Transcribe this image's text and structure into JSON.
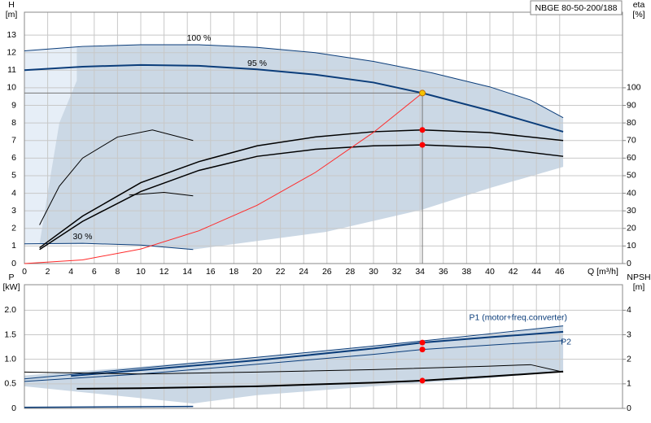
{
  "chart_data": [
    {
      "type": "line",
      "title": "NBGE 80-50-200/188",
      "y_label": "H",
      "y_unit": "[m]",
      "y2_label": "eta",
      "y2_unit": "[%]",
      "x_label": "Q [m³/h]",
      "xlim": [
        0,
        51.4
      ],
      "xticks": [
        0,
        2,
        4,
        6,
        8,
        10,
        12,
        14,
        16,
        18,
        20,
        22,
        24,
        26,
        28,
        30,
        32,
        34,
        36,
        38,
        40,
        42,
        44,
        46
      ],
      "ylim": [
        0,
        14.3
      ],
      "yticks": [
        0,
        1,
        2,
        3,
        4,
        5,
        6,
        7,
        8,
        9,
        10,
        11,
        12,
        13
      ],
      "y2lim": [
        0,
        143
      ],
      "y2ticks": [
        0,
        10,
        20,
        30,
        40,
        50,
        60,
        70,
        80,
        90,
        100
      ],
      "grid": true,
      "regions": [
        {
          "color": "#e6eef7",
          "x": [
            0,
            4.5,
            4.5,
            1.3,
            0
          ],
          "values": [
            12.1,
            12.3,
            1.1,
            1.1,
            1.1
          ]
        },
        {
          "color": "#cbd8e5",
          "x": [
            4.5,
            10,
            15,
            20,
            25,
            30,
            35,
            40,
            43.5,
            46.3,
            46.3,
            40,
            34.2,
            25.9,
            14.5,
            10,
            5,
            1.3,
            2,
            3,
            4.5
          ],
          "values": [
            12.3,
            12.45,
            12.45,
            12.3,
            12.0,
            11.5,
            10.85,
            10.05,
            9.3,
            8.3,
            5.5,
            4.3,
            3.07,
            1.8,
            0.8,
            1.05,
            1.15,
            1.1,
            4,
            8,
            10.4
          ]
        }
      ],
      "series": [
        {
          "name": "100 %",
          "color": "#0b3d7a",
          "x": [
            0,
            5,
            10,
            15,
            20,
            25,
            30,
            35,
            40,
            43.5,
            46.3
          ],
          "values": [
            12.1,
            12.35,
            12.45,
            12.45,
            12.3,
            12.0,
            11.5,
            10.85,
            10.05,
            9.3,
            8.3
          ]
        },
        {
          "name": "95 %",
          "color": "#0b3d7a",
          "x": [
            0,
            5,
            10,
            15,
            20,
            25,
            30,
            34.2,
            40,
            46.3
          ],
          "values": [
            11.0,
            11.2,
            11.3,
            11.25,
            11.05,
            10.75,
            10.3,
            9.7,
            8.7,
            7.5
          ]
        },
        {
          "name": "30 %",
          "color": "#0b3d7a",
          "x": [
            0,
            5,
            10,
            14.5
          ],
          "values": [
            1.12,
            1.15,
            1.05,
            0.8
          ]
        },
        {
          "color": "#000000",
          "axis": "y2",
          "x": [
            1.3,
            5,
            10,
            15,
            20,
            25,
            30,
            34.2,
            40,
            46.3
          ],
          "values": [
            9,
            27,
            46,
            58,
            67,
            72,
            75,
            76,
            74.5,
            70
          ]
        },
        {
          "color": "#000000",
          "axis": "y2",
          "x": [
            1.3,
            5,
            10,
            15,
            20,
            25,
            30,
            34.2,
            40,
            46.3
          ],
          "values": [
            8,
            24,
            41,
            53,
            61,
            65,
            67,
            67.5,
            66,
            61
          ]
        },
        {
          "color": "#000000",
          "axis": "y2",
          "x": [
            1.3,
            3,
            5,
            8,
            11,
            14.5
          ],
          "values": [
            22,
            44,
            60,
            72,
            76,
            70
          ]
        },
        {
          "color": "#000000",
          "axis": "y2",
          "x": [
            9,
            12,
            14.5
          ],
          "values": [
            39,
            40.5,
            38.5
          ]
        },
        {
          "color": "#ff2a2a",
          "x": [
            0,
            5,
            10,
            15,
            20,
            25,
            30,
            34.2
          ],
          "values": [
            0,
            0.207,
            0.829,
            1.866,
            3.317,
            5.183,
            7.464,
            9.7
          ]
        }
      ],
      "points": [
        {
          "x": 34.2,
          "value": 9.7,
          "color": "#f5c400"
        },
        {
          "x": 34.2,
          "value": 76,
          "axis": "y2",
          "color": "#ff0000"
        },
        {
          "x": 34.2,
          "value": 67.5,
          "axis": "y2",
          "color": "#ff0000"
        }
      ]
    },
    {
      "type": "line",
      "y_label": "P",
      "y_unit": "[kW]",
      "y2_label": "NPSH",
      "y2_unit": "[m]",
      "xlim": [
        0,
        51.4
      ],
      "ylim": [
        0,
        2.52
      ],
      "yticks": [
        0,
        0.5,
        {
          "value": 1,
          "label": "1.0"
        },
        1.5,
        {
          "value": 2,
          "label": "2.0"
        }
      ],
      "y2lim": [
        0,
        5.04
      ],
      "y2ticks": [
        0,
        1,
        2,
        3,
        4
      ],
      "grid": true,
      "regions": [
        {
          "color": "#cbd8e5",
          "x": [
            0,
            10,
            20,
            30,
            40,
            46.3,
            46.3,
            40,
            30,
            20,
            14.5,
            0
          ],
          "values": [
            0.67,
            0.85,
            1.05,
            1.27,
            1.5,
            1.68,
            0.75,
            0.62,
            0.45,
            0.27,
            0.1,
            0.45
          ]
        }
      ],
      "series": [
        {
          "name": "P1 (motor+freq.converter)",
          "color": "#0b3d7a",
          "x": [
            0,
            10,
            20,
            30,
            40,
            46.3
          ],
          "values": [
            0.6,
            0.82,
            1.04,
            1.27,
            1.52,
            1.68
          ]
        },
        {
          "color": "#0b3d7a",
          "x": [
            4,
            10,
            20,
            30,
            34.2,
            40,
            46.3
          ],
          "values": [
            0.66,
            0.78,
            0.98,
            1.22,
            1.34,
            1.45,
            1.56
          ]
        },
        {
          "name": "P2",
          "color": "#0b3d7a",
          "x": [
            0,
            10,
            20,
            30,
            34.2,
            40,
            46.3
          ],
          "values": [
            0.55,
            0.7,
            0.9,
            1.1,
            1.2,
            1.29,
            1.38
          ]
        },
        {
          "color": "#000000",
          "axis": "y2",
          "x": [
            4.5,
            10,
            20,
            30,
            34.2,
            40,
            46.3
          ],
          "values": [
            0.8,
            0.82,
            0.9,
            1.05,
            1.13,
            1.3,
            1.5
          ]
        },
        {
          "color": "#000000",
          "axis": "y2",
          "x": [
            0,
            10,
            20,
            30,
            40,
            43.5,
            46.3
          ],
          "values": [
            1.48,
            1.4,
            1.48,
            1.58,
            1.72,
            1.78,
            1.48
          ]
        },
        {
          "color": "#0b3d7a",
          "x": [
            0,
            14.5
          ],
          "values": [
            0.02,
            0.04
          ]
        }
      ],
      "points": [
        {
          "x": 34.2,
          "value": 1.34,
          "color": "#ff0000"
        },
        {
          "x": 34.2,
          "value": 1.2,
          "color": "#ff0000"
        },
        {
          "x": 34.2,
          "value": 1.13,
          "axis": "y2",
          "color": "#ff0000"
        }
      ]
    }
  ]
}
